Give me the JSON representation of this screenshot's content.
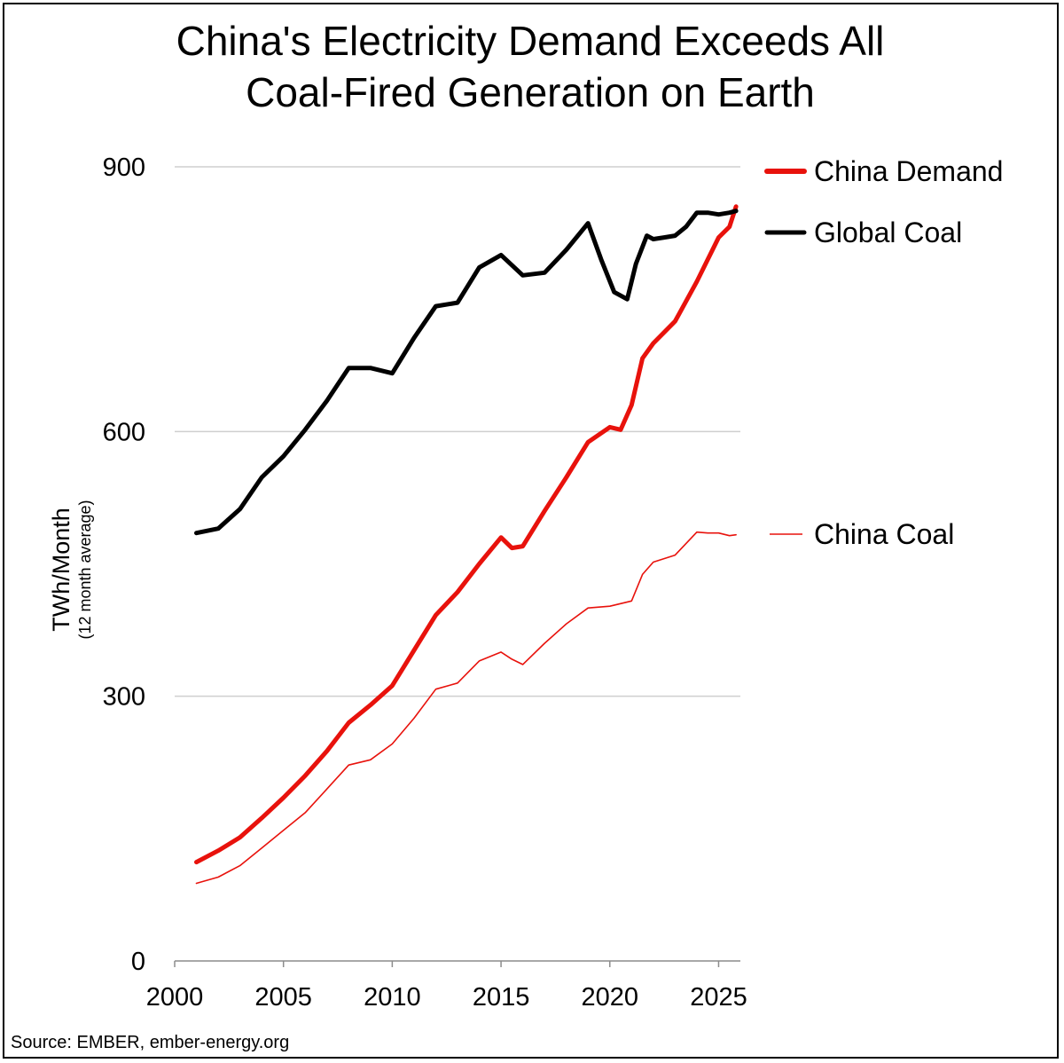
{
  "chart_data": {
    "type": "line",
    "title_lines": [
      "China's Electricity Demand Exceeds All",
      "Coal-Fired Generation on Earth"
    ],
    "ylabel": "TWh/Month",
    "ylabel_sub": "(12 month average)",
    "xlabel": "",
    "xlim": [
      2000,
      2026
    ],
    "ylim": [
      0,
      900
    ],
    "x_ticks": [
      "2000",
      "2005",
      "2010",
      "2015",
      "2020",
      "2025"
    ],
    "y_ticks": [
      "0",
      "300",
      "600",
      "900"
    ],
    "grid": true,
    "source": "Source: EMBER, ember-energy.org",
    "series": [
      {
        "name": "China Demand",
        "color": "#e8120c",
        "width": "thick",
        "x": [
          2001,
          2002,
          2003,
          2004,
          2005,
          2006,
          2007,
          2008,
          2009,
          2010,
          2011,
          2012,
          2013,
          2014,
          2015,
          2015.5,
          2016,
          2017,
          2018,
          2019,
          2020,
          2020.5,
          2021,
          2021.5,
          2022,
          2023,
          2024,
          2025,
          2025.5,
          2025.8
        ],
        "values": [
          112,
          125,
          140,
          162,
          185,
          210,
          238,
          270,
          290,
          312,
          352,
          392,
          418,
          450,
          480,
          468,
          470,
          510,
          548,
          588,
          605,
          602,
          630,
          683,
          700,
          725,
          770,
          820,
          832,
          855
        ]
      },
      {
        "name": "Global Coal",
        "color": "#000000",
        "width": "thick",
        "x": [
          2001,
          2002,
          2003,
          2004,
          2005,
          2006,
          2007,
          2008,
          2009,
          2010,
          2011,
          2012,
          2013,
          2014,
          2015,
          2016,
          2017,
          2018,
          2019,
          2019.6,
          2020.2,
          2020.8,
          2021.2,
          2021.7,
          2022,
          2022.5,
          2023,
          2023.5,
          2024,
          2024.5,
          2025,
          2025.5,
          2025.8
        ],
        "values": [
          485,
          490,
          512,
          548,
          572,
          602,
          635,
          672,
          672,
          666,
          706,
          742,
          746,
          786,
          800,
          777,
          780,
          806,
          836,
          795,
          758,
          750,
          790,
          822,
          818,
          820,
          822,
          832,
          848,
          848,
          846,
          848,
          850
        ]
      },
      {
        "name": "China Coal",
        "color": "#e8120c",
        "width": "thin",
        "x": [
          2001,
          2002,
          2003,
          2004,
          2005,
          2006,
          2007,
          2008,
          2009,
          2010,
          2011,
          2012,
          2013,
          2014,
          2015,
          2015.5,
          2016,
          2017,
          2018,
          2019,
          2020,
          2021,
          2021.5,
          2022,
          2023,
          2024,
          2024.5,
          2025,
          2025.5,
          2025.8
        ],
        "values": [
          88,
          95,
          108,
          128,
          148,
          168,
          195,
          222,
          228,
          246,
          275,
          308,
          315,
          340,
          350,
          342,
          336,
          360,
          382,
          400,
          402,
          408,
          438,
          452,
          460,
          486,
          485,
          485,
          482,
          483
        ]
      }
    ],
    "legend": [
      "China Demand",
      "Global Coal",
      "China Coal"
    ]
  }
}
